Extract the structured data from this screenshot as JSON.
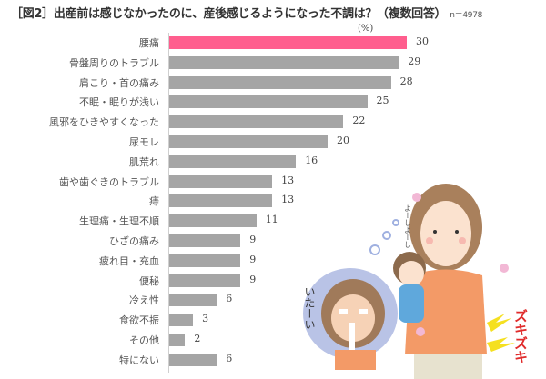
{
  "header": {
    "title": "［図2］出産前は感じなかったのに、産後感じるようになった不調は？（複数回答）",
    "sample_size": "n＝4978",
    "unit": "(%)"
  },
  "colors": {
    "highlight": "#ff5e8e",
    "bar": "#a5a5a5"
  },
  "chart_data": {
    "type": "bar",
    "orientation": "horizontal",
    "title": "［図2］出産前は感じなかったのに、産後感じるようになった不調は？（複数回答）",
    "subtitle": "n＝4978",
    "xlabel": "(%)",
    "ylabel": "",
    "xlim": [
      0,
      30
    ],
    "grid": false,
    "legend": null,
    "categories": [
      "腰痛",
      "骨盤周りのトラブル",
      "肩こり・首の痛み",
      "不眠・眠りが浅い",
      "風邪をひきやすくなった",
      "尿モレ",
      "肌荒れ",
      "歯や歯ぐきのトラブル",
      "痔",
      "生理痛・生理不順",
      "ひざの痛み",
      "疲れ目・充血",
      "便秘",
      "冷え性",
      "食欲不振",
      "その他",
      "特にない"
    ],
    "values": [
      30,
      29,
      28,
      25,
      22,
      20,
      16,
      13,
      13,
      11,
      9,
      9,
      9,
      6,
      3,
      2,
      6
    ],
    "highlighted_index": 0
  },
  "illustration": {
    "speech_text": "よーしよーし",
    "pain_text": "ズキズキ",
    "thought_text": "いたーい"
  }
}
